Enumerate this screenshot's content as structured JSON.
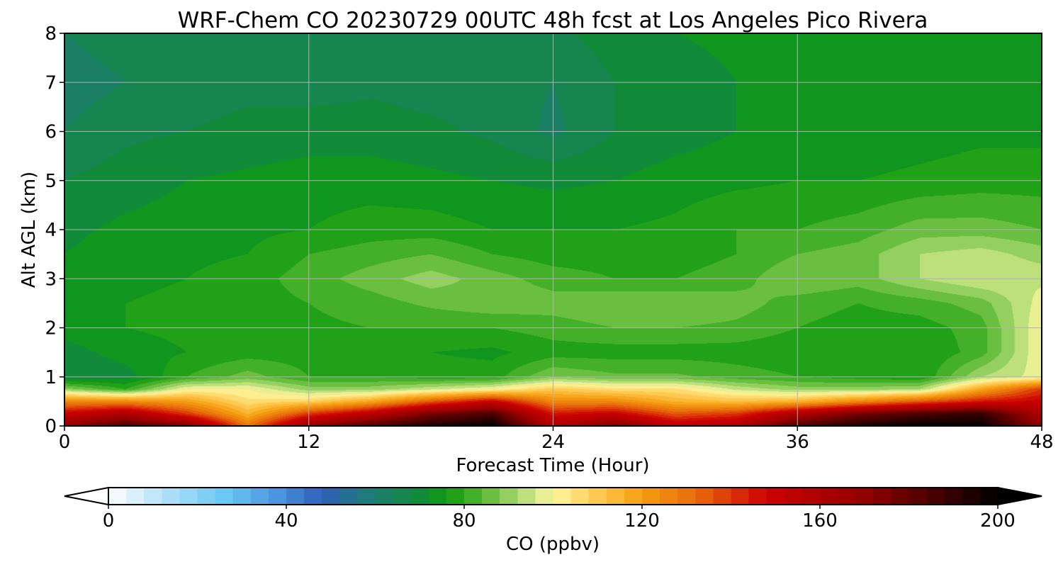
{
  "chart_data": {
    "type": "heatmap",
    "title": "WRF-Chem CO  20230729 00UTC 48h fcst at Los Angeles Pico Rivera",
    "xlabel": "Forecast Time (Hour)",
    "ylabel": "Alt AGL (km)",
    "xlim": [
      0,
      48
    ],
    "ylim": [
      0,
      8
    ],
    "xticks": [
      "0",
      "12",
      "24",
      "36",
      "48"
    ],
    "yticks": [
      "0",
      "1",
      "2",
      "3",
      "4",
      "5",
      "6",
      "7",
      "8"
    ],
    "grid": true,
    "colorbar": {
      "label": "CO  (ppbv)",
      "range": [
        0,
        200
      ],
      "ticks": [
        "0",
        "40",
        "80",
        "120",
        "160",
        "200"
      ],
      "extend": "both",
      "stops": [
        {
          "value": 0,
          "color": "#ffffff"
        },
        {
          "value": 12,
          "color": "#b5e2f7"
        },
        {
          "value": 26,
          "color": "#6ac8f4"
        },
        {
          "value": 38,
          "color": "#4a94e0"
        },
        {
          "value": 48,
          "color": "#2f5fb8"
        },
        {
          "value": 58,
          "color": "#1f7a7a"
        },
        {
          "value": 70,
          "color": "#118a3a"
        },
        {
          "value": 76,
          "color": "#0f9a10"
        },
        {
          "value": 84,
          "color": "#55b630"
        },
        {
          "value": 92,
          "color": "#a8d870"
        },
        {
          "value": 100,
          "color": "#fff7a0"
        },
        {
          "value": 110,
          "color": "#ffc850"
        },
        {
          "value": 120,
          "color": "#f59e10"
        },
        {
          "value": 132,
          "color": "#e86c0c"
        },
        {
          "value": 148,
          "color": "#cc0000"
        },
        {
          "value": 168,
          "color": "#990000"
        },
        {
          "value": 184,
          "color": "#500000"
        },
        {
          "value": 200,
          "color": "#000000"
        }
      ]
    },
    "field": {
      "x": [
        0,
        3,
        6,
        9,
        12,
        15,
        18,
        21,
        24,
        27,
        30,
        33,
        36,
        39,
        42,
        45,
        48
      ],
      "y": [
        0,
        0.25,
        0.5,
        0.75,
        1,
        1.5,
        2,
        2.5,
        3,
        3.5,
        4,
        5,
        6,
        7,
        8
      ],
      "values": [
        [
          170,
          185,
          175,
          130,
          170,
          185,
          195,
          200,
          160,
          175,
          155,
          160,
          185,
          195,
          200,
          200,
          170
        ],
        [
          150,
          160,
          140,
          115,
          140,
          155,
          175,
          185,
          145,
          150,
          135,
          140,
          160,
          175,
          185,
          190,
          160
        ],
        [
          125,
          125,
          120,
          105,
          108,
          118,
          135,
          150,
          125,
          125,
          115,
          112,
          115,
          125,
          135,
          145,
          150
        ],
        [
          90,
          80,
          100,
          100,
          90,
          90,
          95,
          100,
          110,
          105,
          105,
          95,
          90,
          90,
          92,
          118,
          140
        ],
        [
          68,
          70,
          80,
          86,
          80,
          80,
          78,
          78,
          88,
          85,
          85,
          82,
          80,
          78,
          76,
          92,
          98
        ],
        [
          70,
          74,
          76,
          78,
          78,
          78,
          76,
          75,
          78,
          78,
          78,
          78,
          77,
          76,
          76,
          82,
          100
        ],
        [
          74,
          76,
          77,
          78,
          79,
          80,
          80,
          80,
          82,
          84,
          84,
          83,
          80,
          78,
          78,
          82,
          100
        ],
        [
          74,
          76,
          77,
          78,
          80,
          82,
          85,
          87,
          86,
          88,
          88,
          86,
          82,
          80,
          82,
          86,
          98
        ],
        [
          73,
          75,
          76,
          78,
          82,
          86,
          90,
          86,
          82,
          80,
          80,
          82,
          88,
          86,
          92,
          96,
          95
        ],
        [
          72,
          74,
          75,
          76,
          80,
          82,
          84,
          80,
          78,
          78,
          78,
          80,
          84,
          86,
          92,
          94,
          90
        ],
        [
          71,
          73,
          74,
          75,
          76,
          78,
          78,
          76,
          76,
          76,
          77,
          80,
          80,
          82,
          86,
          86,
          84
        ],
        [
          68,
          70,
          72,
          73,
          74,
          74,
          73,
          72,
          71,
          72,
          74,
          75,
          76,
          76,
          77,
          78,
          78
        ],
        [
          64,
          67,
          68,
          69,
          70,
          70,
          69,
          67,
          63,
          68,
          70,
          72,
          73,
          73,
          74,
          75,
          75
        ],
        [
          62,
          64,
          66,
          67,
          66,
          67,
          66,
          66,
          64,
          68,
          70,
          72,
          73,
          73,
          74,
          75,
          75
        ],
        [
          64,
          66,
          67,
          68,
          66,
          65,
          66,
          68,
          67,
          70,
          72,
          73,
          73,
          74,
          74,
          75,
          75
        ]
      ]
    }
  }
}
